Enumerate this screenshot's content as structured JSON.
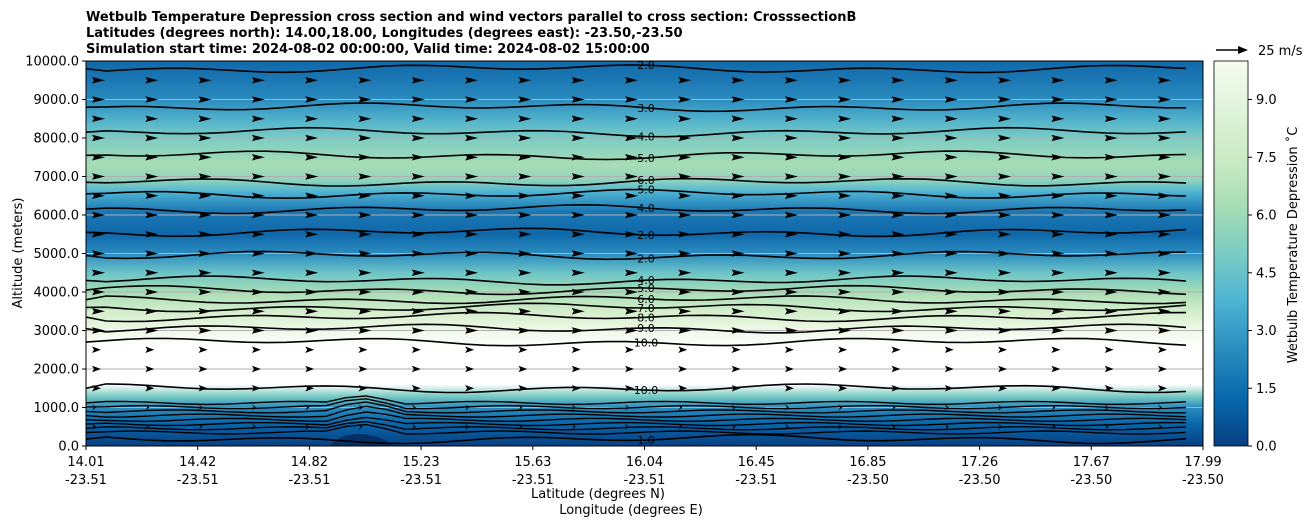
{
  "chart_data": {
    "type": "contour",
    "title_lines": [
      "Wetbulb Temperature Depression cross section and wind vectors parallel to cross section: CrosssectionB",
      "Latitudes (degrees north): 14.00,18.00, Longitudes (degrees east): -23.50,-23.50",
      "Simulation start time: 2024-08-02 00:00:00, Valid time: 2024-08-02 15:00:00"
    ],
    "ylabel": "Altitude (meters)",
    "xlabel_lat": "Latitude (degrees N)",
    "xlabel_lon": "Longitude (degrees E)",
    "ylim": [
      0,
      10000
    ],
    "yticks": [
      0,
      1000,
      2000,
      3000,
      4000,
      5000,
      6000,
      7000,
      8000,
      9000,
      10000
    ],
    "ytick_labels": [
      "0.0",
      "1000.0",
      "2000.0",
      "3000.0",
      "4000.0",
      "5000.0",
      "6000.0",
      "7000.0",
      "8000.0",
      "9000.0",
      "10000.0"
    ],
    "x_fraction": [
      0,
      0.1,
      0.2,
      0.3,
      0.4,
      0.5,
      0.6,
      0.7,
      0.8,
      0.9,
      1.0
    ],
    "xtick_lat": [
      "14.01",
      "14.42",
      "14.82",
      "15.23",
      "15.63",
      "16.04",
      "16.45",
      "16.85",
      "17.26",
      "17.67",
      "17.99"
    ],
    "xtick_lon": [
      "-23.51",
      "-23.51",
      "-23.51",
      "-23.51",
      "-23.51",
      "-23.51",
      "-23.51",
      "-23.50",
      "-23.50",
      "-23.50",
      "-23.50"
    ],
    "colorbar": {
      "label": "Wetbulb Temperature Depression ˚C",
      "range": [
        0,
        10
      ],
      "ticks": [
        0.0,
        1.5,
        3.0,
        4.5,
        6.0,
        7.5,
        9.0
      ],
      "tick_labels": [
        "0.0",
        "1.5",
        "3.0",
        "4.5",
        "6.0",
        "7.5",
        "9.0"
      ],
      "colormap": [
        "#084081",
        "#0868ac",
        "#2b8cbe",
        "#4eb3d3",
        "#7bccc4",
        "#a8ddb5",
        "#ccebc5",
        "#e0f3db",
        "#f7fcf0"
      ]
    },
    "quiver_key": "25 m/s",
    "contour_levels": [
      {
        "value": 2.0,
        "label": "2.0",
        "altitude": 9800
      },
      {
        "value": 3.0,
        "label": "3.0",
        "altitude": 8800
      },
      {
        "value": 4.0,
        "label": "4.0",
        "altitude": 8150
      },
      {
        "value": 5.0,
        "label": "5.0",
        "altitude": 7550
      },
      {
        "value": 6.0,
        "label": "6.0",
        "altitude": 6850
      },
      {
        "value": 5.0,
        "label": "5.0",
        "altitude": 6550
      },
      {
        "value": 4.0,
        "label": "4.0",
        "altitude": 6150
      },
      {
        "value": 2.0,
        "label": "2.0",
        "altitude": 5550
      },
      {
        "value": 2.0,
        "label": "2.0",
        "altitude": 4950
      },
      {
        "value": 4.0,
        "label": "4.0",
        "altitude": 4300
      },
      {
        "value": 5.0,
        "label": "5.0",
        "altitude": 4050
      },
      {
        "value": 6.0,
        "label": "6.0",
        "altitude": 3800
      },
      {
        "value": 7.0,
        "label": "7.0",
        "altitude": 3600
      },
      {
        "value": 8.0,
        "label": "8.0",
        "altitude": 3350
      },
      {
        "value": 9.0,
        "label": "9.0",
        "altitude": 3050
      },
      {
        "value": 10.0,
        "label": "10.0",
        "altitude": 2700
      },
      {
        "value": 10.0,
        "label": "10.0",
        "altitude": 1500
      },
      {
        "value": 1.0,
        "label": "1.0",
        "altitude": 180
      }
    ]
  }
}
